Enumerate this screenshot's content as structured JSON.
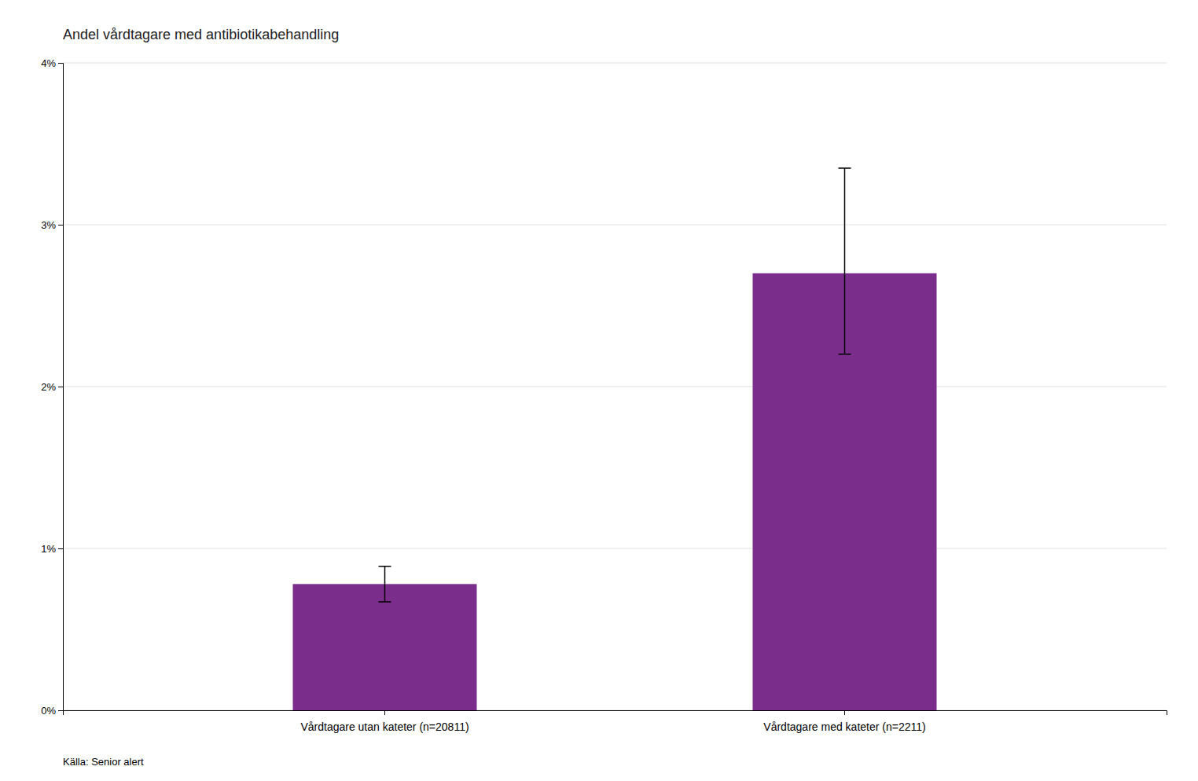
{
  "chart_data": {
    "type": "bar",
    "title": "Andel vårdtagare med antibiotikabehandling",
    "categories": [
      "Vårdtagare utan kateter (n=20811)",
      "Vårdtagare med kateter (n=2211)"
    ],
    "values": [
      0.0078,
      0.027
    ],
    "errors_upper": [
      0.0011,
      0.0065
    ],
    "errors_lower": [
      0.0011,
      0.005
    ],
    "color": "#7B2D8B",
    "ylim": [
      0,
      0.04
    ],
    "yticks": [
      {
        "value": 0.0,
        "label": "0%"
      },
      {
        "value": 0.01,
        "label": "1%"
      },
      {
        "value": 0.02,
        "label": "2%"
      },
      {
        "value": 0.03,
        "label": "3%"
      },
      {
        "value": 0.04,
        "label": "4%"
      }
    ],
    "grid": true,
    "annotations": [
      "Källa: Senior alert"
    ]
  }
}
